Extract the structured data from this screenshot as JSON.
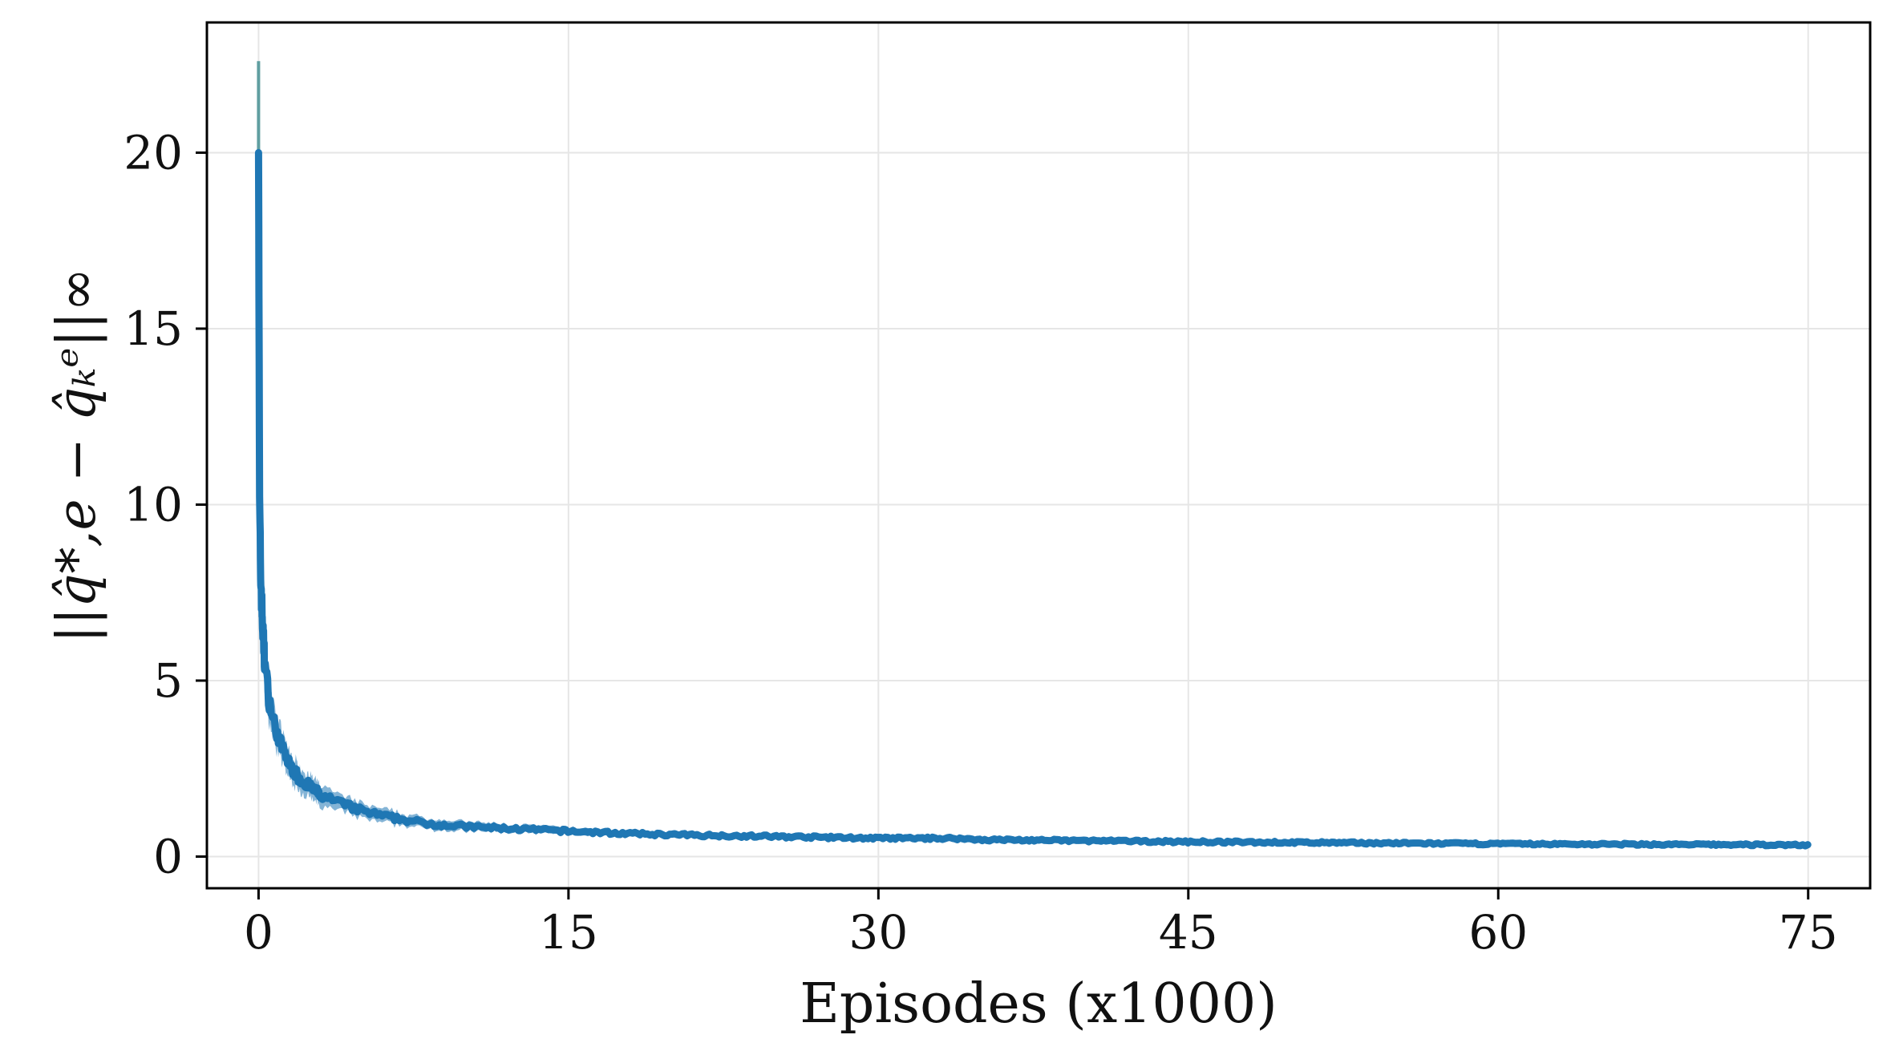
{
  "chart_data": {
    "type": "line",
    "title": "",
    "xlabel": "Episodes (x1000)",
    "ylabel": "||q̂*,e − q̂ₖᵉ||∞",
    "xlim": [
      -2.5,
      78
    ],
    "ylim": [
      -0.9,
      23.7
    ],
    "xticks": [
      0,
      15,
      30,
      45,
      60,
      75
    ],
    "yticks": [
      0,
      5,
      10,
      15,
      20
    ],
    "grid": true,
    "legend": "none",
    "colors": {
      "series": "#1f77b4",
      "spike": "#5f9ea0",
      "axes": "#000000",
      "grid": "#e6e6e6"
    },
    "series": [
      {
        "x": [
          0,
          0.05,
          0.1,
          0.2,
          0.3,
          0.5,
          0.7,
          1,
          1.5,
          2,
          3,
          4,
          5,
          6,
          8,
          10,
          12,
          15,
          18,
          20,
          25,
          30,
          33.5,
          35,
          40,
          45,
          50,
          55,
          60,
          65,
          70,
          75
        ],
        "y": [
          20,
          10,
          8,
          6.5,
          5.5,
          4.5,
          3.9,
          3.3,
          2.6,
          2.2,
          1.75,
          1.5,
          1.3,
          1.15,
          0.95,
          0.85,
          0.8,
          0.72,
          0.65,
          0.62,
          0.57,
          0.52,
          0.52,
          0.48,
          0.45,
          0.42,
          0.4,
          0.38,
          0.36,
          0.35,
          0.34,
          0.33
        ],
        "band": [
          0,
          1.5,
          1.3,
          1.1,
          1.0,
          0.85,
          0.7,
          0.6,
          0.5,
          0.45,
          0.38,
          0.32,
          0.28,
          0.25,
          0.2,
          0.18,
          0.16,
          0.14,
          0.12,
          0.12,
          0.11,
          0.1,
          0.1,
          0.1,
          0.09,
          0.09,
          0.09,
          0.08,
          0.08,
          0.08,
          0.08,
          0.08
        ]
      }
    ],
    "peak": {
      "x": 0,
      "y": 22.6
    }
  }
}
